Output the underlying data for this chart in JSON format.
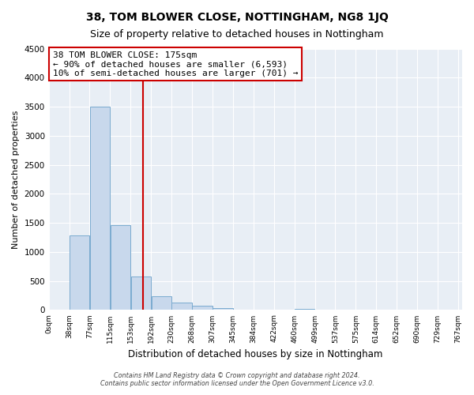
{
  "title": "38, TOM BLOWER CLOSE, NOTTINGHAM, NG8 1JQ",
  "subtitle": "Size of property relative to detached houses in Nottingham",
  "xlabel": "Distribution of detached houses by size in Nottingham",
  "ylabel": "Number of detached properties",
  "bin_labels": [
    "0sqm",
    "38sqm",
    "77sqm",
    "115sqm",
    "153sqm",
    "192sqm",
    "230sqm",
    "268sqm",
    "307sqm",
    "345sqm",
    "384sqm",
    "422sqm",
    "460sqm",
    "499sqm",
    "537sqm",
    "575sqm",
    "614sqm",
    "652sqm",
    "690sqm",
    "729sqm",
    "767sqm"
  ],
  "bar_heights": [
    0,
    1280,
    3500,
    1460,
    575,
    240,
    130,
    70,
    30,
    0,
    0,
    0,
    15,
    0,
    0,
    0,
    0,
    0,
    0,
    0
  ],
  "bar_color": "#c8d8ec",
  "bar_edge_color": "#7aabcf",
  "property_line_x": 175,
  "property_line_label": "38 TOM BLOWER CLOSE: 175sqm",
  "annotation_line1": "← 90% of detached houses are smaller (6,593)",
  "annotation_line2": "10% of semi-detached houses are larger (701) →",
  "annotation_box_color": "#ffffff",
  "annotation_box_edge": "#cc0000",
  "vline_color": "#cc0000",
  "ylim": [
    0,
    4500
  ],
  "xlim_min": 0,
  "xlim_max": 767,
  "bin_width": 38,
  "footer_line1": "Contains HM Land Registry data © Crown copyright and database right 2024.",
  "footer_line2": "Contains public sector information licensed under the Open Government Licence v3.0.",
  "background_color": "#ffffff",
  "plot_background": "#e8eef5",
  "grid_color": "#ffffff",
  "title_fontsize": 10,
  "subtitle_fontsize": 9
}
